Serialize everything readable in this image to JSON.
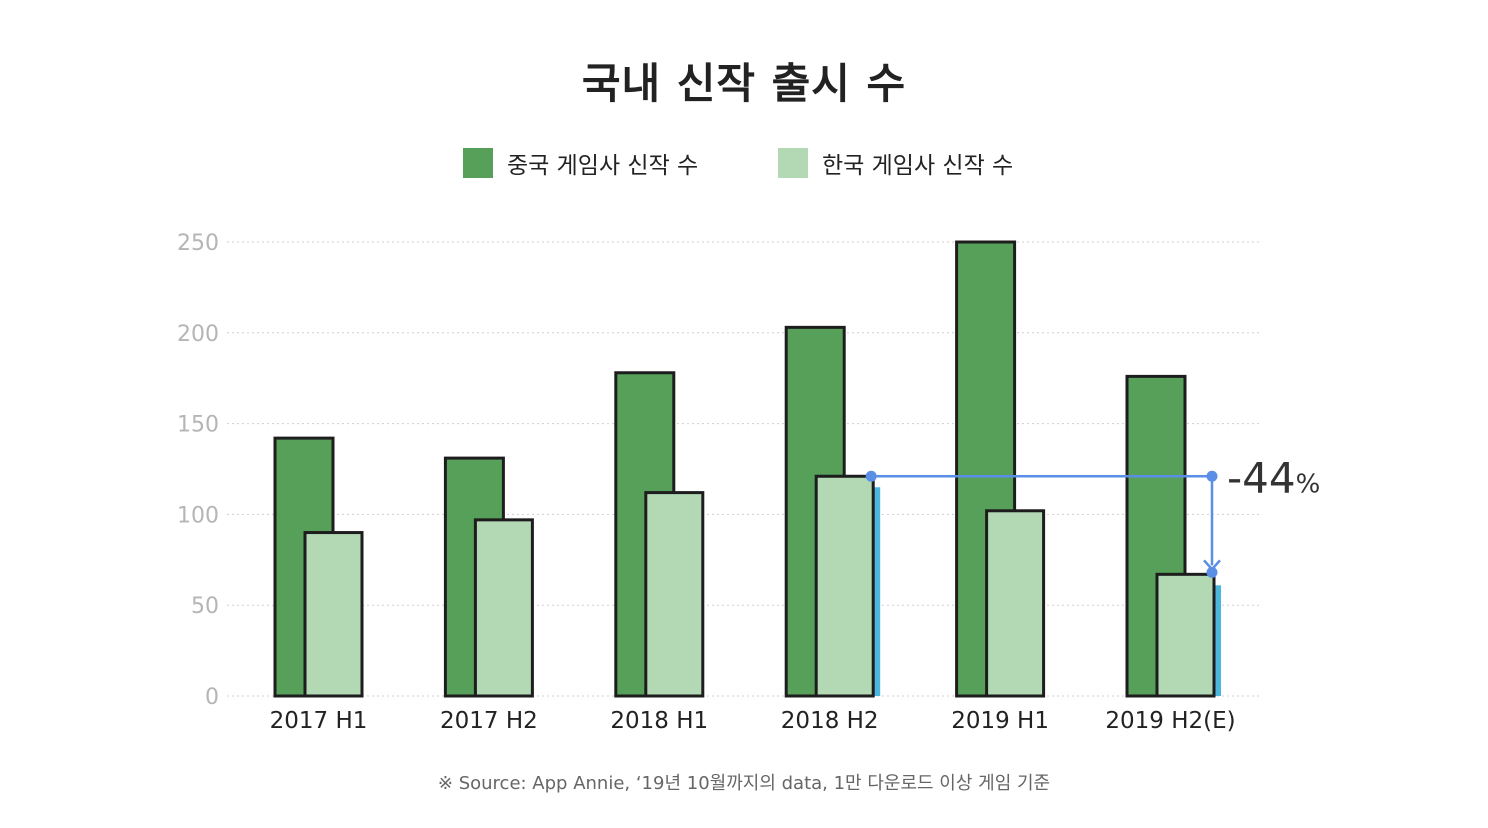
{
  "chart_data": {
    "type": "bar",
    "title": "국내 신작 출시 수",
    "categories": [
      "2017 H1",
      "2017 H2",
      "2018 H1",
      "2018 H2",
      "2019 H1",
      "2019 H2(E)"
    ],
    "series": [
      {
        "name": "중국 게임사 신작 수",
        "values": [
          142,
          131,
          178,
          203,
          250,
          176
        ],
        "color": "#57a05a"
      },
      {
        "name": "한국 게임사 신작 수",
        "values": [
          90,
          97,
          112,
          121,
          102,
          67
        ],
        "color": "#b2d8b4"
      }
    ],
    "ylim": [
      0,
      250
    ],
    "yticks": [
      0,
      50,
      100,
      150,
      200,
      250
    ],
    "grid": true,
    "legend_position": "top-center",
    "highlight_color": "#4cb6dc",
    "annotation": {
      "text": "-44",
      "unit": "%",
      "from_category": "2018 H2",
      "to_category": "2019 H2(E)",
      "from_value": 121,
      "to_value": 67,
      "color": "#5b8fe6"
    },
    "source": "※ Source: App Annie, ‘19년 10월까지의 data, 1만 다운로드 이상 게임 기준"
  }
}
